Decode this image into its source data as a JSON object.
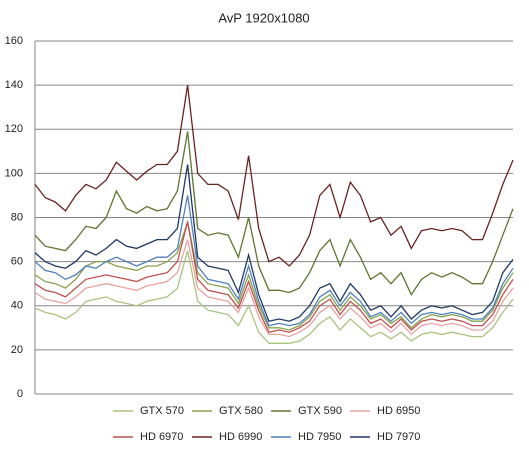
{
  "chart_data": {
    "type": "line",
    "title": "AvP 1920x1080",
    "ylim": [
      0,
      160
    ],
    "yticks": [
      0,
      20,
      40,
      60,
      80,
      100,
      120,
      140,
      160
    ],
    "grid": true,
    "legend": "bottom",
    "series": [
      {
        "name": "GTX 570",
        "color": "#a9c47f",
        "values": [
          39,
          37,
          36,
          34,
          37,
          42,
          43,
          44,
          42,
          41,
          40,
          42,
          43,
          44,
          48,
          65,
          42,
          38,
          37,
          36,
          31,
          40,
          28,
          23,
          23,
          23,
          24,
          27,
          32,
          35,
          29,
          34,
          30,
          26,
          28,
          25,
          28,
          24,
          27,
          28,
          27,
          28,
          27,
          26,
          26,
          30,
          37,
          43
        ]
      },
      {
        "name": "GTX 580",
        "color": "#8aa34f",
        "values": [
          54,
          51,
          50,
          48,
          52,
          58,
          60,
          60,
          58,
          57,
          56,
          58,
          58,
          60,
          64,
          78,
          55,
          50,
          49,
          48,
          41,
          54,
          40,
          30,
          30,
          29,
          31,
          35,
          42,
          45,
          38,
          44,
          40,
          34,
          36,
          32,
          35,
          30,
          34,
          36,
          35,
          36,
          35,
          33,
          33,
          38,
          48,
          55
        ]
      },
      {
        "name": "GTX 590",
        "color": "#5f7530",
        "values": [
          72,
          67,
          66,
          65,
          70,
          76,
          75,
          80,
          92,
          84,
          82,
          85,
          83,
          84,
          92,
          119,
          75,
          72,
          73,
          72,
          62,
          80,
          58,
          47,
          47,
          46,
          48,
          55,
          65,
          70,
          58,
          70,
          62,
          52,
          55,
          50,
          55,
          45,
          52,
          55,
          53,
          55,
          53,
          50,
          50,
          60,
          72,
          84
        ]
      },
      {
        "name": "HD 6950",
        "color": "#e8a3a1",
        "values": [
          46,
          43,
          42,
          41,
          44,
          48,
          49,
          50,
          49,
          48,
          47,
          49,
          50,
          51,
          55,
          70,
          48,
          44,
          43,
          42,
          37,
          48,
          35,
          27,
          27,
          26,
          28,
          31,
          37,
          40,
          34,
          39,
          35,
          30,
          32,
          28,
          32,
          27,
          31,
          32,
          31,
          32,
          31,
          29,
          29,
          33,
          42,
          48
        ]
      },
      {
        "name": "HD 6970",
        "color": "#c0504d",
        "values": [
          50,
          47,
          46,
          44,
          48,
          52,
          53,
          54,
          53,
          52,
          51,
          53,
          54,
          55,
          60,
          78,
          52,
          47,
          46,
          45,
          39,
          51,
          38,
          28,
          29,
          28,
          30,
          33,
          40,
          43,
          36,
          42,
          38,
          32,
          34,
          30,
          34,
          29,
          33,
          34,
          33,
          34,
          33,
          31,
          31,
          36,
          45,
          52
        ]
      },
      {
        "name": "HD 6990",
        "color": "#6b2222",
        "values": [
          95,
          89,
          87,
          83,
          90,
          95,
          93,
          97,
          105,
          101,
          97,
          101,
          104,
          104,
          110,
          140,
          100,
          95,
          95,
          92,
          79,
          108,
          75,
          60,
          62,
          58,
          63,
          72,
          90,
          95,
          80,
          96,
          90,
          78,
          80,
          72,
          76,
          66,
          74,
          75,
          74,
          75,
          74,
          70,
          70,
          82,
          95,
          106
        ]
      },
      {
        "name": "HD 7950",
        "color": "#4f81bd",
        "values": [
          60,
          56,
          55,
          52,
          54,
          58,
          57,
          60,
          62,
          60,
          58,
          60,
          62,
          62,
          66,
          90,
          58,
          52,
          51,
          50,
          43,
          58,
          42,
          31,
          32,
          31,
          32,
          36,
          44,
          47,
          40,
          46,
          42,
          35,
          37,
          33,
          37,
          32,
          36,
          37,
          36,
          37,
          36,
          34,
          34,
          39,
          50,
          57
        ]
      },
      {
        "name": "HD 7970",
        "color": "#1f3864",
        "values": [
          64,
          60,
          58,
          57,
          60,
          65,
          63,
          66,
          70,
          67,
          66,
          68,
          70,
          70,
          75,
          104,
          62,
          58,
          57,
          56,
          46,
          63,
          45,
          33,
          34,
          33,
          35,
          40,
          48,
          50,
          42,
          50,
          45,
          38,
          40,
          35,
          40,
          34,
          38,
          40,
          39,
          40,
          38,
          36,
          37,
          42,
          55,
          61
        ]
      }
    ]
  }
}
